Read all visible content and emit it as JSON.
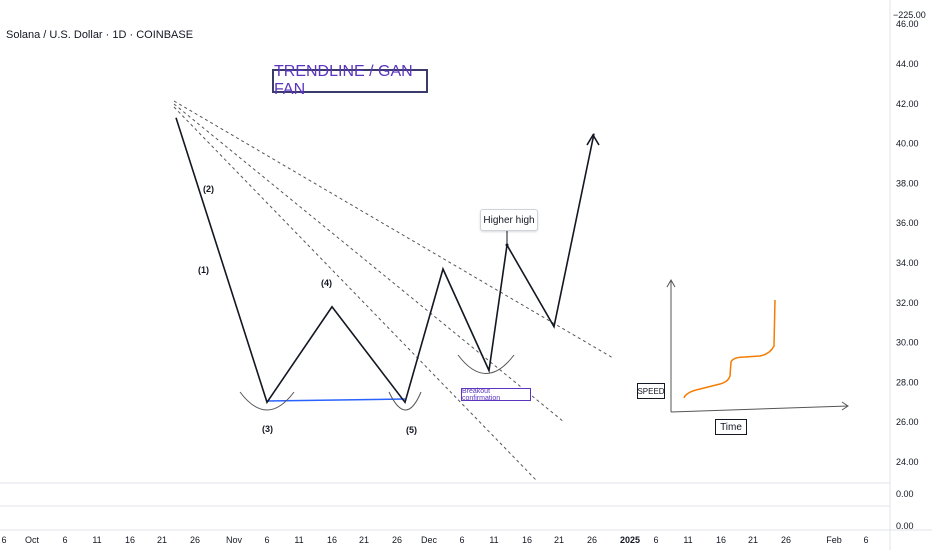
{
  "symbol_label": "Solana / U.S. Dollar · 1D · COINBASE",
  "title_box": "TRENDLINE / GAN FAN",
  "callout_higher_high": "Higher high",
  "breakout_label": "Breakout confirmation",
  "speed_label": "SPEED",
  "time_label": "Time",
  "colors": {
    "price_line": "#131722",
    "support_line": "#2962ff",
    "speed_curve": "#f57c00",
    "title_text": "#5b34c0",
    "fan_lines": "#555555"
  },
  "chart_data": {
    "type": "line",
    "price_axis_labels": [
      "46.00",
      "44.00",
      "42.00",
      "40.00",
      "38.00",
      "36.00",
      "34.00",
      "32.00",
      "30.00",
      "28.00",
      "26.00",
      "24.00"
    ],
    "lower_pane_labels": [
      "0.00",
      "0.00"
    ],
    "top_axis_label": "−225.00",
    "time_axis_labels": [
      "6",
      "Oct",
      "6",
      "11",
      "16",
      "21",
      "26",
      "Nov",
      "6",
      "11",
      "16",
      "21",
      "26",
      "Dec",
      "6",
      "11",
      "16",
      "21",
      "26",
      "2025",
      "6",
      "11",
      "16",
      "21",
      "26",
      "Feb",
      "6"
    ],
    "ylim": [
      23,
      46
    ],
    "wave_labels": [
      "(1)",
      "(2)",
      "(3)",
      "(4)",
      "(5)"
    ],
    "series": [
      {
        "name": "",
        "x": [
          "Oct 23",
          "Nov 6",
          "Nov 16",
          "Nov 27",
          "Dec 2",
          "Dec 10",
          "Dec 13",
          "Dec 20",
          "Dec 26"
        ],
        "values": [
          41.3,
          27.0,
          31.8,
          27.0,
          33.7,
          28.6,
          34.9,
          30.8,
          40.5
        ]
      }
    ],
    "support_level": 27.0,
    "annotations": [
      {
        "text": "Higher high",
        "x": "Dec 13",
        "y": 34.9
      },
      {
        "text": "Breakout confirmation",
        "x": "Dec 10",
        "y": 28.6
      }
    ],
    "grid": false
  }
}
